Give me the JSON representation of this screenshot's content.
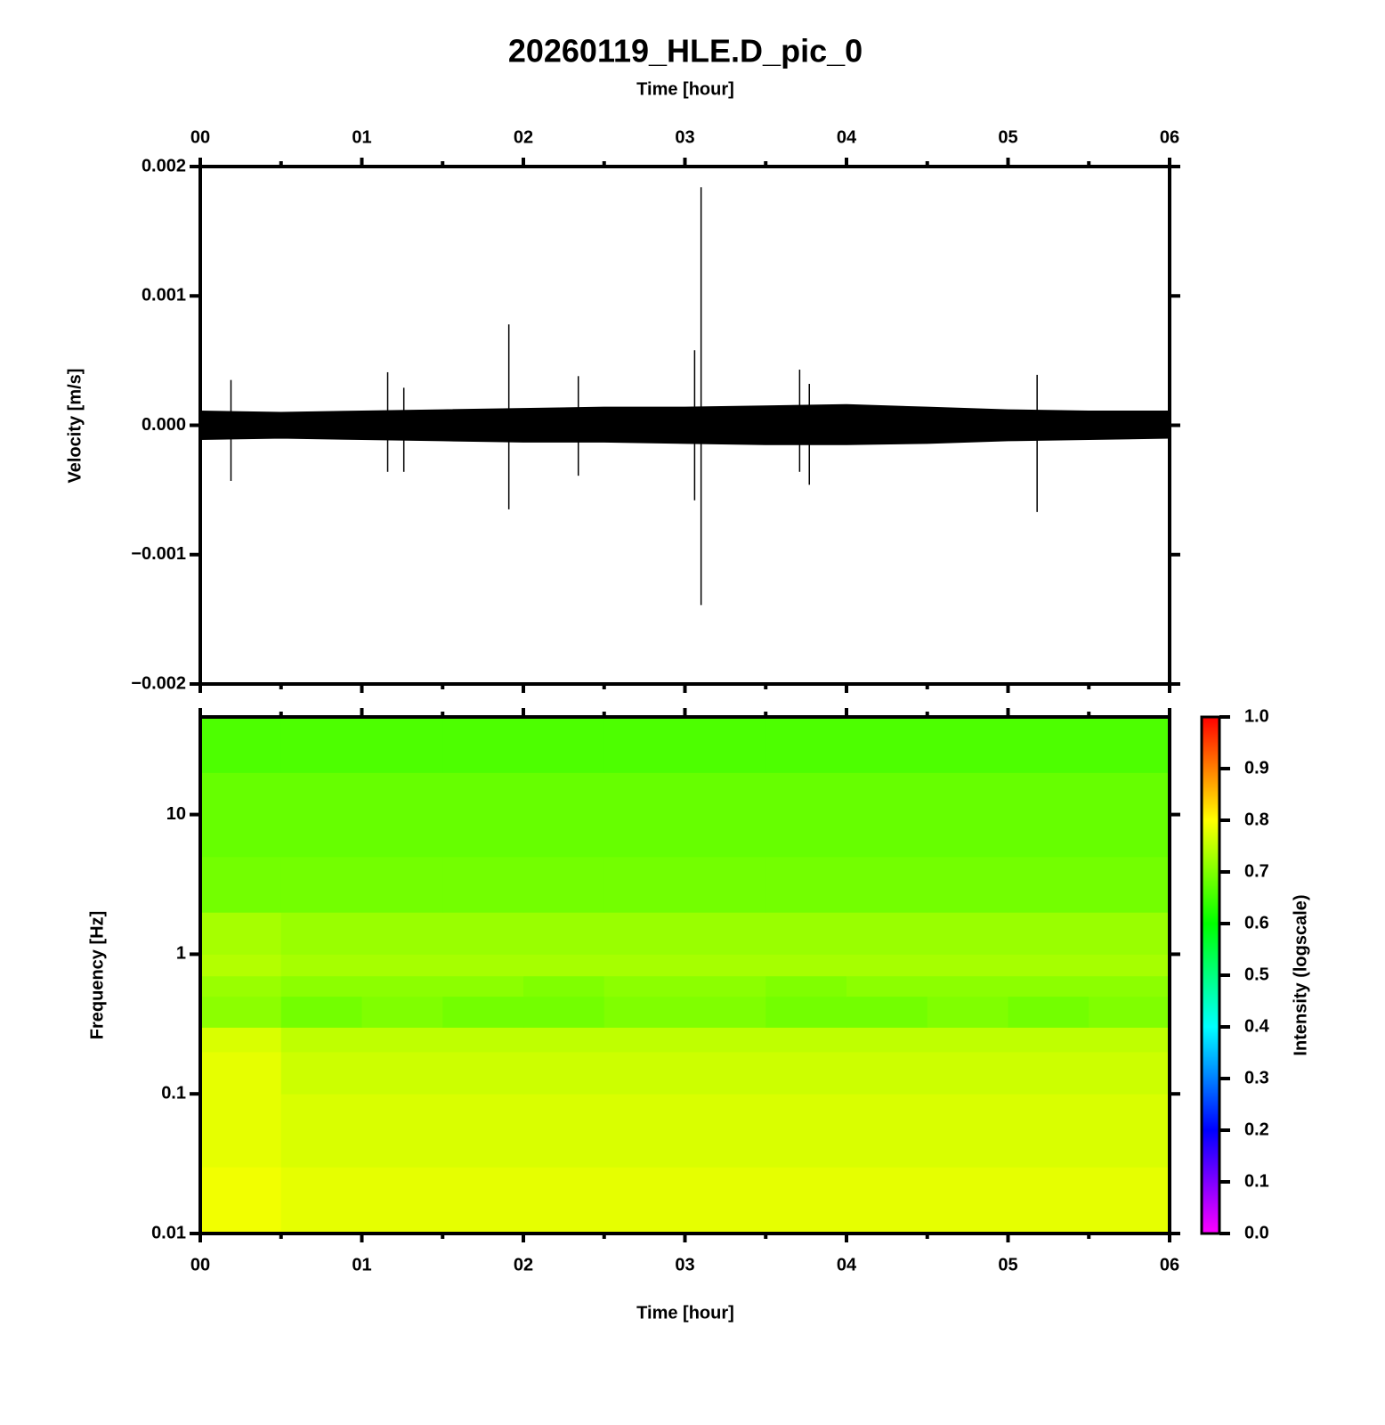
{
  "chart_data": [
    {
      "type": "waveform",
      "title": "20260119_HLE.D_pic_0",
      "x_label": "Time [hour]",
      "y_label": "Velocity [m/s]",
      "xlim": [
        0,
        6
      ],
      "xticks": [
        {
          "value": 0,
          "label": "00"
        },
        {
          "value": 1,
          "label": "01"
        },
        {
          "value": 2,
          "label": "02"
        },
        {
          "value": 3,
          "label": "03"
        },
        {
          "value": 4,
          "label": "04"
        },
        {
          "value": 5,
          "label": "05"
        },
        {
          "value": 6,
          "label": "06"
        }
      ],
      "xminor_ticks": [
        0.5,
        1.5,
        2.5,
        3.5,
        4.5,
        5.5
      ],
      "ylim": [
        -0.002,
        0.002
      ],
      "yticks": [
        {
          "value": -0.002,
          "label": "−0.002"
        },
        {
          "value": -0.001,
          "label": "−0.001"
        },
        {
          "value": 0,
          "label": "0.000"
        },
        0.001,
        0.002
      ],
      "color": "#000000",
      "envelope": {
        "x": [
          0,
          0.5,
          1,
          1.5,
          2,
          2.5,
          3,
          3.5,
          4,
          4.5,
          5,
          5.5,
          6
        ],
        "upper": [
          0.00011,
          0.0001,
          0.00011,
          0.00012,
          0.00013,
          0.00014,
          0.00014,
          0.00015,
          0.00016,
          0.00014,
          0.00012,
          0.00011,
          0.00011
        ],
        "lower": [
          -0.00011,
          -0.0001,
          -0.00011,
          -0.00012,
          -0.00013,
          -0.00013,
          -0.00014,
          -0.00015,
          -0.00015,
          -0.00014,
          -0.00012,
          -0.00011,
          -0.0001
        ]
      },
      "spikes": {
        "x": [
          0.19,
          1.16,
          1.26,
          1.91,
          2.34,
          3.06,
          3.1,
          3.71,
          3.77,
          5.18
        ],
        "max": [
          0.00035,
          0.00041,
          0.00029,
          0.00078,
          0.00038,
          0.00058,
          0.00184,
          0.00043,
          0.00032,
          0.00039
        ],
        "min": [
          -0.00043,
          -0.00036,
          -0.00036,
          -0.00065,
          -0.00039,
          -0.00058,
          -0.00139,
          -0.00036,
          -0.00046,
          -0.00067
        ]
      }
    },
    {
      "type": "heatmap",
      "x_label": "Time [hour]",
      "y_label": "Frequency [Hz]",
      "xlim": [
        0,
        6
      ],
      "xticks": [
        {
          "value": 0,
          "label": "00"
        },
        {
          "value": 1,
          "label": "01"
        },
        {
          "value": 2,
          "label": "02"
        },
        {
          "value": 3,
          "label": "03"
        },
        {
          "value": 4,
          "label": "04"
        },
        {
          "value": 5,
          "label": "05"
        },
        {
          "value": 6,
          "label": "06"
        }
      ],
      "xminor_ticks": [
        0.5,
        1.5,
        2.5,
        3.5,
        4.5,
        5.5
      ],
      "ylim": [
        0.01,
        50
      ],
      "yticks": [
        0.01,
        0.1,
        1,
        10
      ],
      "log_y": true,
      "time_bins": [
        0,
        0.5,
        1,
        1.5,
        2,
        2.5,
        3,
        3.5,
        4,
        4.5,
        5,
        5.5,
        6
      ],
      "freq_bins": [
        0.01,
        0.03,
        0.1,
        0.2,
        0.3,
        0.5,
        0.7,
        1,
        2,
        5,
        20,
        50
      ],
      "values": [
        [
          0.79,
          0.78,
          0.78,
          0.78,
          0.78,
          0.78,
          0.78,
          0.78,
          0.78,
          0.78,
          0.78,
          0.78
        ],
        [
          0.78,
          0.77,
          0.77,
          0.77,
          0.77,
          0.77,
          0.77,
          0.77,
          0.77,
          0.77,
          0.77,
          0.77
        ],
        [
          0.78,
          0.76,
          0.76,
          0.76,
          0.76,
          0.76,
          0.76,
          0.76,
          0.76,
          0.76,
          0.76,
          0.76
        ],
        [
          0.77,
          0.75,
          0.75,
          0.75,
          0.75,
          0.75,
          0.75,
          0.75,
          0.75,
          0.75,
          0.75,
          0.75
        ],
        [
          0.71,
          0.69,
          0.7,
          0.69,
          0.69,
          0.7,
          0.7,
          0.69,
          0.69,
          0.7,
          0.69,
          0.7
        ],
        [
          0.72,
          0.71,
          0.71,
          0.71,
          0.7,
          0.71,
          0.71,
          0.7,
          0.71,
          0.71,
          0.71,
          0.71
        ],
        [
          0.74,
          0.73,
          0.73,
          0.73,
          0.73,
          0.73,
          0.73,
          0.73,
          0.73,
          0.73,
          0.73,
          0.73
        ],
        [
          0.73,
          0.72,
          0.72,
          0.72,
          0.72,
          0.72,
          0.72,
          0.72,
          0.72,
          0.72,
          0.72,
          0.72
        ],
        [
          0.69,
          0.69,
          0.69,
          0.69,
          0.69,
          0.69,
          0.69,
          0.69,
          0.69,
          0.69,
          0.69,
          0.69
        ],
        [
          0.68,
          0.68,
          0.68,
          0.68,
          0.68,
          0.68,
          0.68,
          0.68,
          0.68,
          0.68,
          0.68,
          0.68
        ],
        [
          0.66,
          0.66,
          0.66,
          0.66,
          0.66,
          0.66,
          0.66,
          0.66,
          0.66,
          0.66,
          0.66,
          0.66
        ]
      ],
      "colorbar": {
        "label": "Intensity (logscale)",
        "lim": [
          0,
          1
        ],
        "ticks": [
          {
            "value": 0,
            "label": "0.0"
          },
          0.1,
          0.2,
          0.3,
          0.4,
          0.5,
          0.6,
          0.7,
          0.8,
          0.9,
          {
            "value": 1,
            "label": "1.0"
          }
        ],
        "colors": [
          "#ff00ff",
          "#0000ff",
          "#00ffff",
          "#00ff00",
          "#ffff00",
          "#ff0000"
        ]
      }
    }
  ]
}
